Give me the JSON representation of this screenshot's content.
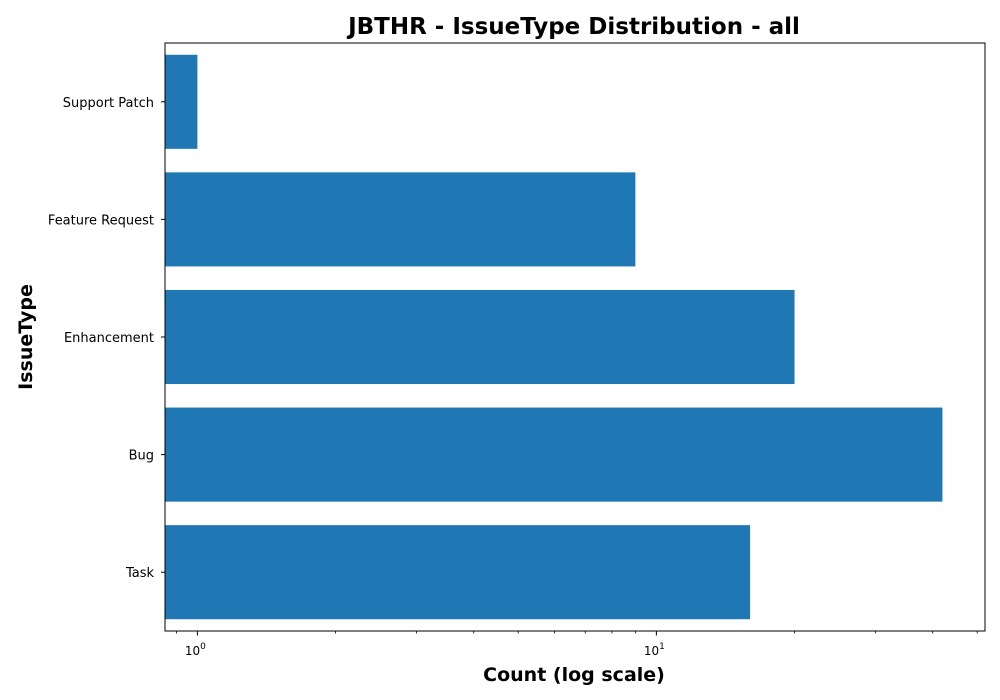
{
  "chart_data": {
    "type": "bar",
    "orientation": "horizontal",
    "title": "JBTHR - IssueType Distribution - all",
    "xlabel": "Count (log scale)",
    "ylabel": "IssueType",
    "x_scale": "log",
    "xlim": [
      0.85,
      52
    ],
    "x_major_ticks": [
      {
        "value": 1,
        "base": "10",
        "exp": "0"
      },
      {
        "value": 10,
        "base": "10",
        "exp": "1"
      }
    ],
    "categories": [
      "Task",
      "Bug",
      "Enhancement",
      "Feature Request",
      "Support Patch"
    ],
    "values": [
      16,
      42,
      20,
      9,
      1
    ],
    "bar_color": "#1f77b4",
    "grid": false,
    "legend": "none"
  }
}
